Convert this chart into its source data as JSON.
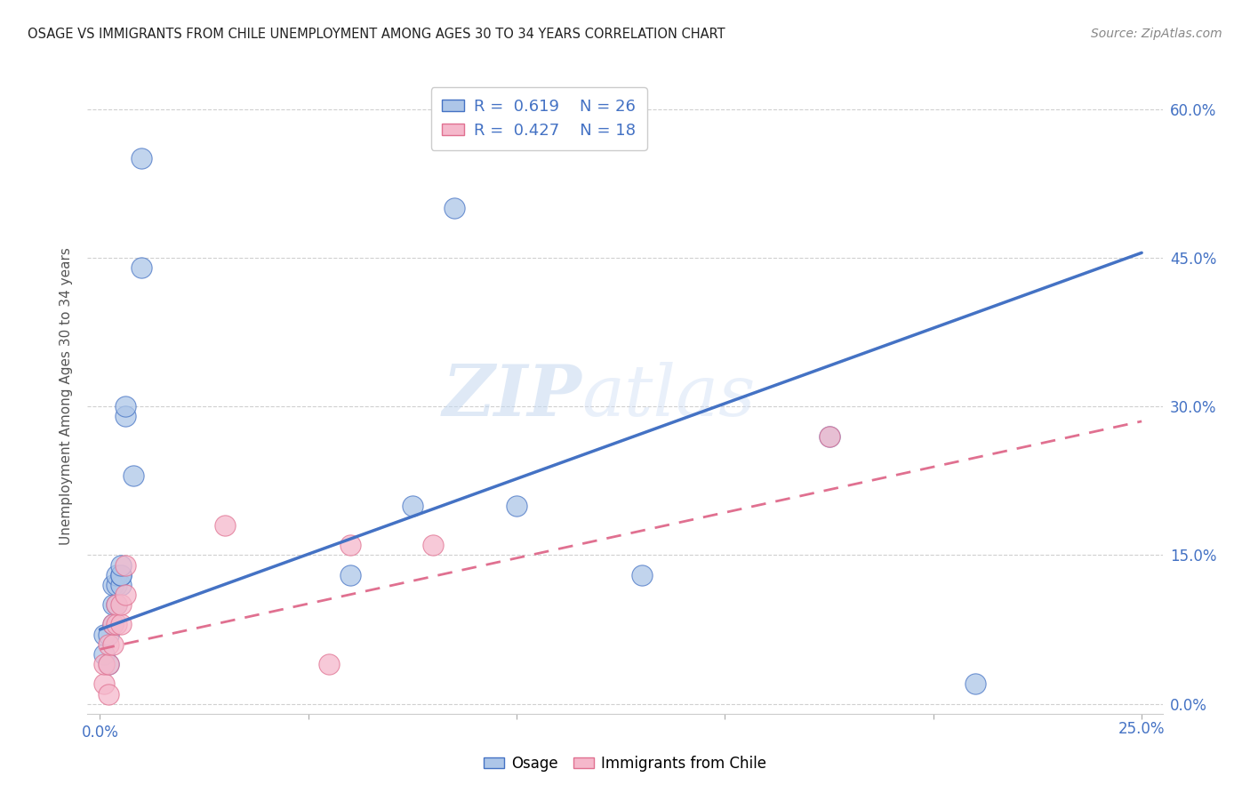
{
  "title": "OSAGE VS IMMIGRANTS FROM CHILE UNEMPLOYMENT AMONG AGES 30 TO 34 YEARS CORRELATION CHART",
  "source": "Source: ZipAtlas.com",
  "ylabel": "Unemployment Among Ages 30 to 34 years",
  "legend_osage": "Osage",
  "legend_chile": "Immigrants from Chile",
  "r_osage": "0.619",
  "n_osage": "26",
  "r_chile": "0.427",
  "n_chile": "18",
  "osage_color": "#adc6e8",
  "chile_color": "#f5b8cb",
  "osage_line_color": "#4472c4",
  "chile_line_color": "#e07090",
  "ytick_labels": [
    "0.0%",
    "15.0%",
    "30.0%",
    "45.0%",
    "60.0%"
  ],
  "ytick_vals": [
    0.0,
    0.15,
    0.3,
    0.45,
    0.6
  ],
  "xtick_vals": [
    0.0,
    0.05,
    0.1,
    0.15,
    0.2,
    0.25
  ],
  "xlim": [
    -0.003,
    0.255
  ],
  "ylim": [
    -0.01,
    0.63
  ],
  "osage_x": [
    0.001,
    0.001,
    0.002,
    0.002,
    0.003,
    0.003,
    0.003,
    0.004,
    0.004,
    0.004,
    0.005,
    0.005,
    0.005,
    0.005,
    0.006,
    0.006,
    0.008,
    0.01,
    0.01,
    0.06,
    0.075,
    0.085,
    0.1,
    0.13,
    0.175,
    0.21
  ],
  "osage_y": [
    0.05,
    0.07,
    0.04,
    0.07,
    0.08,
    0.1,
    0.12,
    0.1,
    0.12,
    0.13,
    0.12,
    0.13,
    0.13,
    0.14,
    0.29,
    0.3,
    0.23,
    0.55,
    0.44,
    0.13,
    0.2,
    0.5,
    0.2,
    0.13,
    0.27,
    0.02
  ],
  "chile_x": [
    0.001,
    0.001,
    0.002,
    0.002,
    0.003,
    0.003,
    0.004,
    0.004,
    0.005,
    0.005,
    0.006,
    0.006,
    0.03,
    0.055,
    0.06,
    0.08,
    0.175,
    0.002
  ],
  "chile_y": [
    0.02,
    0.04,
    0.04,
    0.06,
    0.06,
    0.08,
    0.08,
    0.1,
    0.08,
    0.1,
    0.14,
    0.11,
    0.18,
    0.04,
    0.16,
    0.16,
    0.27,
    0.01
  ],
  "osage_line_x": [
    0.0,
    0.25
  ],
  "osage_line_y": [
    0.075,
    0.455
  ],
  "chile_line_x": [
    0.0,
    0.25
  ],
  "chile_line_y": [
    0.055,
    0.285
  ],
  "watermark_zip": "ZIP",
  "watermark_atlas": "atlas",
  "background_color": "#ffffff",
  "grid_color": "#d0d0d0",
  "tick_color": "#4472c4",
  "title_color": "#222222",
  "source_color": "#888888",
  "ylabel_color": "#555555"
}
